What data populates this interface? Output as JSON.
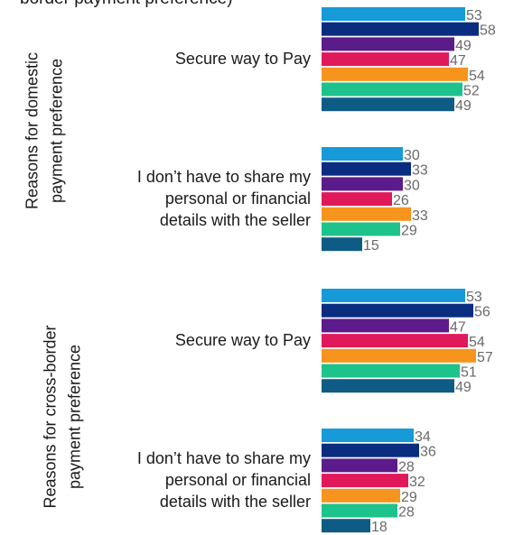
{
  "top_clipped_text": "border payment preference)",
  "colors": [
    "#169bd8",
    "#0a2d80",
    "#5c1b8a",
    "#e0195a",
    "#f7941d",
    "#1ec28b",
    "#0e5c85"
  ],
  "chart_data": {
    "type": "bar",
    "orientation": "horizontal",
    "sections": [
      {
        "label_lines": [
          "Reasons for domestic",
          "payment preference"
        ],
        "groups": [
          {
            "label_lines": [
              "Secure way to Pay"
            ],
            "values": [
              53,
              58,
              49,
              47,
              54,
              52,
              49
            ]
          },
          {
            "label_lines": [
              "I don’t have to share my",
              "personal or financial",
              "details with the seller"
            ],
            "values": [
              30,
              33,
              30,
              26,
              33,
              29,
              15
            ]
          }
        ]
      },
      {
        "label_lines": [
          "Reasons for cross-border",
          "payment preference"
        ],
        "groups": [
          {
            "label_lines": [
              "Secure way to Pay"
            ],
            "values": [
              53,
              56,
              47,
              54,
              57,
              51,
              49
            ]
          },
          {
            "label_lines": [
              "I don’t have to share my",
              "personal or financial",
              "details with the seller"
            ],
            "values": [
              34,
              36,
              28,
              32,
              29,
              28,
              18
            ]
          }
        ]
      }
    ],
    "xlim": [
      0,
      100
    ],
    "grid": false,
    "legend": "none"
  }
}
